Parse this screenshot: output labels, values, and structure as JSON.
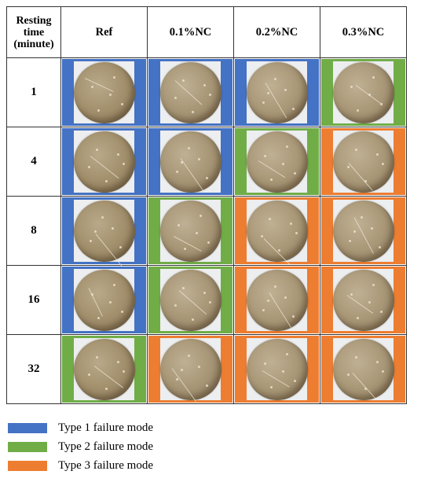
{
  "colors": {
    "type1": "#4472c4",
    "type2": "#70ad47",
    "type3": "#ed7d31"
  },
  "table": {
    "corner_header": [
      "Resting",
      "time",
      "(minute)"
    ],
    "columns": [
      "Ref",
      "0.1%NC",
      "0.2%NC",
      "0.3%NC"
    ],
    "rows": [
      {
        "time": "1",
        "modes": [
          "type1",
          "type1",
          "type1",
          "type2"
        ]
      },
      {
        "time": "4",
        "modes": [
          "type1",
          "type1",
          "type2",
          "type3"
        ]
      },
      {
        "time": "8",
        "modes": [
          "type1",
          "type2",
          "type3",
          "type3"
        ]
      },
      {
        "time": "16",
        "modes": [
          "type1",
          "type2",
          "type3",
          "type3"
        ]
      },
      {
        "time": "32",
        "modes": [
          "type2",
          "type3",
          "type3",
          "type3"
        ]
      }
    ]
  },
  "legend": [
    {
      "mode": "type1",
      "label": "Type 1 failure mode"
    },
    {
      "mode": "type2",
      "label": "Type 2 failure mode"
    },
    {
      "mode": "type3",
      "label": "Type 3 failure mode"
    }
  ]
}
